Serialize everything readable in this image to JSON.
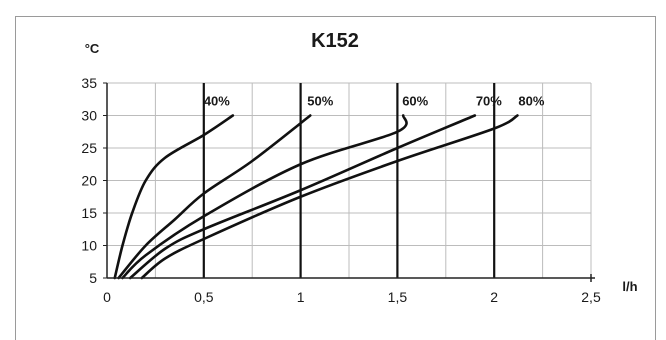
{
  "chart_data": {
    "type": "line",
    "title": "K152",
    "ylabel": "°C",
    "xlabel": "l/h",
    "xlim": [
      0,
      2.5
    ],
    "ylim": [
      5,
      35
    ],
    "x_ticks": [
      0,
      0.5,
      1,
      1.5,
      2,
      2.5
    ],
    "x_tick_labels": [
      "0",
      "0,5",
      "1",
      "1,5",
      "2",
      "2,5"
    ],
    "y_ticks": [
      5,
      10,
      15,
      20,
      25,
      30,
      35
    ],
    "y_tick_labels": [
      "5",
      "10",
      "15",
      "20",
      "25",
      "30",
      "35"
    ],
    "grid": true,
    "vertical_markers": [
      0.5,
      1,
      1.5,
      2
    ],
    "series": [
      {
        "name": "40%",
        "points": [
          [
            0.04,
            5
          ],
          [
            0.08,
            10
          ],
          [
            0.13,
            15
          ],
          [
            0.2,
            20
          ],
          [
            0.3,
            23.5
          ],
          [
            0.5,
            27
          ],
          [
            0.65,
            30
          ]
        ]
      },
      {
        "name": "50%",
        "points": [
          [
            0.06,
            5
          ],
          [
            0.2,
            10
          ],
          [
            0.35,
            14
          ],
          [
            0.5,
            18
          ],
          [
            0.75,
            23
          ],
          [
            1.05,
            30
          ]
        ]
      },
      {
        "name": "60%",
        "points": [
          [
            0.08,
            5
          ],
          [
            0.2,
            8.5
          ],
          [
            0.5,
            14.5
          ],
          [
            1,
            22.5
          ],
          [
            1.5,
            27.5
          ],
          [
            1.53,
            30
          ]
        ]
      },
      {
        "name": "70%",
        "points": [
          [
            0.12,
            5
          ],
          [
            0.3,
            9.5
          ],
          [
            0.5,
            12.5
          ],
          [
            1,
            18.5
          ],
          [
            1.5,
            25
          ],
          [
            1.9,
            30
          ]
        ]
      },
      {
        "name": "80%",
        "points": [
          [
            0.18,
            5
          ],
          [
            0.3,
            8
          ],
          [
            0.5,
            11
          ],
          [
            1,
            17.5
          ],
          [
            1.5,
            23
          ],
          [
            2,
            28
          ],
          [
            2.12,
            30
          ]
        ]
      }
    ]
  }
}
